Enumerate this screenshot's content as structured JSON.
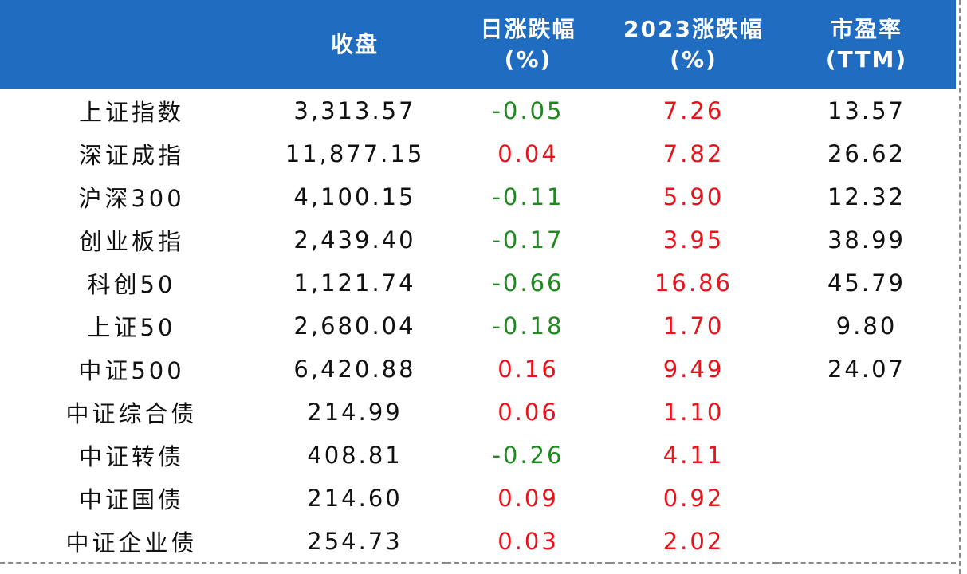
{
  "colors": {
    "header_bg": "#1f6cc0",
    "header_text": "#ffffff",
    "negative": "#1e8a1e",
    "positive": "#e8141c",
    "body_text": "#111111"
  },
  "headers": {
    "index": "",
    "close": "收盘",
    "daily_change_line1": "日涨跌幅",
    "daily_change_line2": "(%)",
    "ytd_change_line1": "2023涨跌幅",
    "ytd_change_line2": "(%)",
    "pe_line1": "市盈率",
    "pe_line2": "(TTM)"
  },
  "rows": [
    {
      "name": "上证指数",
      "close": "3,313.57",
      "daily": "-0.05",
      "daily_sign": "neg",
      "ytd": "7.26",
      "ytd_sign": "pos",
      "pe": "13.57"
    },
    {
      "name": "深证成指",
      "close": "11,877.15",
      "daily": "0.04",
      "daily_sign": "pos",
      "ytd": "7.82",
      "ytd_sign": "pos",
      "pe": "26.62"
    },
    {
      "name": "沪深300",
      "close": "4,100.15",
      "daily": "-0.11",
      "daily_sign": "neg",
      "ytd": "5.90",
      "ytd_sign": "pos",
      "pe": "12.32"
    },
    {
      "name": "创业板指",
      "close": "2,439.40",
      "daily": "-0.17",
      "daily_sign": "neg",
      "ytd": "3.95",
      "ytd_sign": "pos",
      "pe": "38.99"
    },
    {
      "name": "科创50",
      "close": "1,121.74",
      "daily": "-0.66",
      "daily_sign": "neg",
      "ytd": "16.86",
      "ytd_sign": "pos",
      "pe": "45.79"
    },
    {
      "name": "上证50",
      "close": "2,680.04",
      "daily": "-0.18",
      "daily_sign": "neg",
      "ytd": "1.70",
      "ytd_sign": "pos",
      "pe": "9.80"
    },
    {
      "name": "中证500",
      "close": "6,420.88",
      "daily": "0.16",
      "daily_sign": "pos",
      "ytd": "9.49",
      "ytd_sign": "pos",
      "pe": "24.07"
    },
    {
      "name": "中证综合债",
      "close": "214.99",
      "daily": "0.06",
      "daily_sign": "pos",
      "ytd": "1.10",
      "ytd_sign": "pos",
      "pe": ""
    },
    {
      "name": "中证转债",
      "close": "408.81",
      "daily": "-0.26",
      "daily_sign": "neg",
      "ytd": "4.11",
      "ytd_sign": "pos",
      "pe": ""
    },
    {
      "name": "中证国债",
      "close": "214.60",
      "daily": "0.09",
      "daily_sign": "pos",
      "ytd": "0.92",
      "ytd_sign": "pos",
      "pe": ""
    },
    {
      "name": "中证企业债",
      "close": "254.73",
      "daily": "0.03",
      "daily_sign": "pos",
      "ytd": "2.02",
      "ytd_sign": "pos",
      "pe": ""
    }
  ]
}
